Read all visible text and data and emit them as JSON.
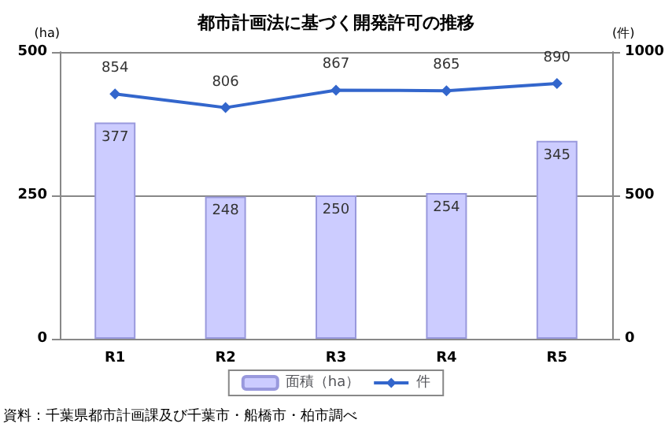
{
  "chart_data": {
    "type": "bar",
    "title": "都市計画法に基づく開発許可の推移",
    "categories": [
      "R1",
      "R2",
      "R3",
      "R4",
      "R5"
    ],
    "series": [
      {
        "name": "面積（ha）",
        "color": "#ccccff",
        "values": [
          377,
          248,
          250,
          254,
          345
        ]
      },
      {
        "name": "件",
        "type": "line",
        "axis": "y2",
        "color": "#3366cc",
        "values": [
          854,
          806,
          867,
          865,
          890
        ]
      }
    ],
    "ylabel": "(ha)",
    "y2label": "(件)",
    "ylim": [
      0,
      500
    ],
    "yticks": [
      0,
      250,
      500
    ],
    "y2lim": [
      0,
      1000
    ],
    "y2ticks": [
      0,
      500,
      1000
    ],
    "grid": "y",
    "legend": "bottom",
    "marker": "diamond",
    "line_style": "solid",
    "data_labels": true,
    "annotations": [
      "資料：千葉県都市計画課及び千葉市・船橋市・柏市調べ"
    ]
  }
}
